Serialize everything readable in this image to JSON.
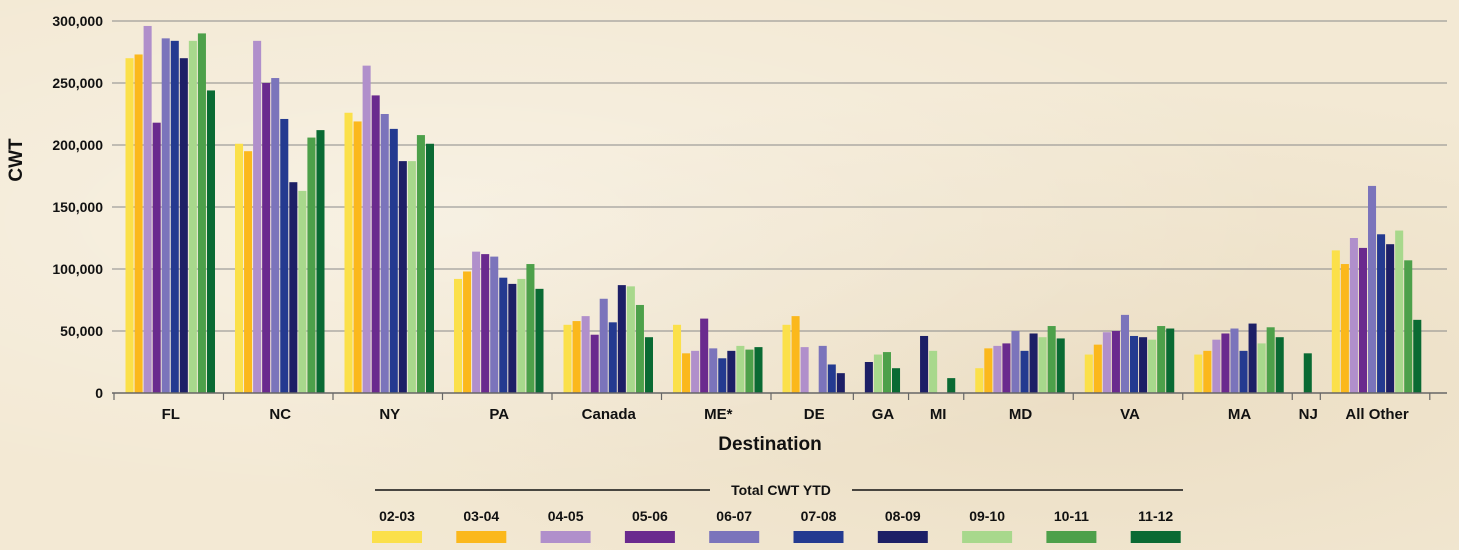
{
  "chart_data": {
    "type": "bar",
    "ylabel": "CWT",
    "xlabel": "Destination",
    "ylim": [
      0,
      300000
    ],
    "yticks": [
      "0",
      "50,000",
      "100,000",
      "150,000",
      "200,000",
      "250,000",
      "300,000"
    ],
    "grid": true,
    "legend_title": "Total CWT YTD",
    "legend_placement": "bottom",
    "categories": [
      "FL",
      "NC",
      "NY",
      "PA",
      "Canada",
      "ME*",
      "DE",
      "GA",
      "MI",
      "MD",
      "VA",
      "MA",
      "NJ",
      "All Other"
    ],
    "series": [
      {
        "name": "02-03",
        "color": "#fbe04a",
        "values": [
          270000,
          201000,
          226000,
          92000,
          55000,
          55000,
          55000,
          0,
          0,
          20000,
          31000,
          31000,
          0,
          115000
        ]
      },
      {
        "name": "03-04",
        "color": "#fbb81c",
        "values": [
          273000,
          195000,
          219000,
          98000,
          58000,
          32000,
          62000,
          0,
          0,
          36000,
          39000,
          34000,
          0,
          104000
        ]
      },
      {
        "name": "04-05",
        "color": "#b08fcb",
        "values": [
          296000,
          284000,
          264000,
          114000,
          62000,
          34000,
          37000,
          0,
          0,
          38000,
          49000,
          43000,
          0,
          125000
        ]
      },
      {
        "name": "05-06",
        "color": "#6a2a8e",
        "values": [
          218000,
          250000,
          240000,
          112000,
          47000,
          60000,
          0,
          0,
          0,
          40000,
          50000,
          48000,
          0,
          117000
        ]
      },
      {
        "name": "06-07",
        "color": "#7b74bb",
        "values": [
          286000,
          254000,
          225000,
          110000,
          76000,
          36000,
          38000,
          0,
          0,
          50000,
          63000,
          52000,
          0,
          167000
        ]
      },
      {
        "name": "07-08",
        "color": "#243a90",
        "values": [
          284000,
          221000,
          213000,
          93000,
          57000,
          28000,
          23000,
          0,
          0,
          34000,
          46000,
          34000,
          0,
          128000
        ]
      },
      {
        "name": "08-09",
        "color": "#1d1f66",
        "values": [
          270000,
          170000,
          187000,
          88000,
          87000,
          34000,
          16000,
          25000,
          46000,
          48000,
          45000,
          56000,
          0,
          120000
        ]
      },
      {
        "name": "09-10",
        "color": "#a8d88c",
        "values": [
          284000,
          163000,
          187000,
          92000,
          86000,
          38000,
          0,
          31000,
          34000,
          45000,
          43000,
          40000,
          0,
          131000
        ]
      },
      {
        "name": "10-11",
        "color": "#4da04a",
        "values": [
          290000,
          206000,
          208000,
          104000,
          71000,
          35000,
          0,
          33000,
          0,
          54000,
          54000,
          53000,
          0,
          107000
        ]
      },
      {
        "name": "11-12",
        "color": "#0a6a33",
        "values": [
          244000,
          212000,
          201000,
          84000,
          45000,
          37000,
          0,
          20000,
          12000,
          44000,
          52000,
          45000,
          32000,
          59000
        ]
      }
    ]
  }
}
